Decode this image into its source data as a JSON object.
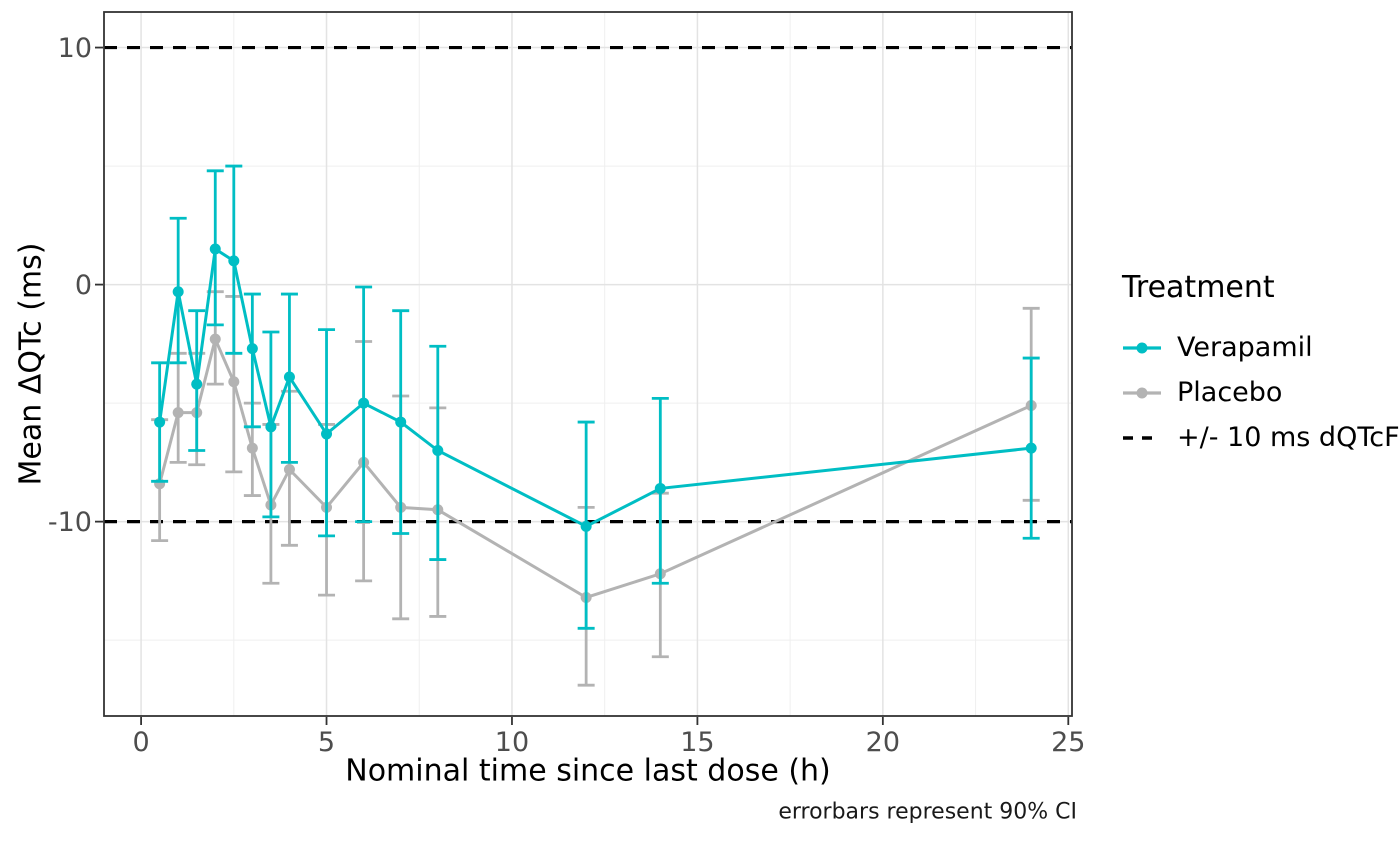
{
  "chart_data": {
    "type": "line",
    "title": "",
    "xlabel": "Nominal time since last dose (h)",
    "ylabel": "Mean ΔQTc (ms)",
    "caption": "errorbars represent 90% CI",
    "xlim": [
      -1.0,
      25.1
    ],
    "ylim": [
      -18.2,
      11.5
    ],
    "grid": true,
    "x_ticks": [
      0,
      5,
      10,
      15,
      20,
      25
    ],
    "x_tick_labels": [
      "0",
      "5",
      "10",
      "15",
      "20",
      "25"
    ],
    "x_minor_ticks": [
      2.5,
      7.5,
      12.5,
      17.5,
      22.5
    ],
    "y_ticks": [
      10,
      0,
      -10
    ],
    "y_tick_labels": [
      "10",
      "0",
      "-10"
    ],
    "y_minor_ticks": [
      5,
      -5,
      -15
    ],
    "x": [
      0.5,
      1,
      1.5,
      2,
      2.5,
      3,
      3.5,
      4,
      5,
      6,
      7,
      8,
      12,
      14,
      24
    ],
    "series": [
      {
        "name": "Placebo",
        "color": "#B3B3B3",
        "values": [
          -8.4,
          -5.4,
          -5.4,
          -2.3,
          -4.1,
          -6.9,
          -9.3,
          -7.8,
          -9.4,
          -7.5,
          -9.4,
          -9.5,
          -13.2,
          -12.2,
          -5.1
        ],
        "ci_high": [
          -5.7,
          -2.9,
          -2.9,
          -0.3,
          -0.5,
          -5.0,
          -5.9,
          -4.5,
          -5.9,
          -2.4,
          -4.7,
          -5.2,
          -9.4,
          -8.8,
          -1.0
        ],
        "ci_low": [
          -10.8,
          -7.5,
          -7.6,
          -4.2,
          -7.9,
          -8.9,
          -12.6,
          -11.0,
          -13.1,
          -12.5,
          -14.1,
          -14.0,
          -16.9,
          -15.7,
          -9.1
        ]
      },
      {
        "name": "Verapamil",
        "color": "#00BEC4",
        "values": [
          -5.8,
          -0.3,
          -4.2,
          1.5,
          1.0,
          -2.7,
          -6.0,
          -3.9,
          -6.3,
          -5.0,
          -5.8,
          -7.0,
          -10.2,
          -8.6,
          -6.9
        ],
        "ci_high": [
          -3.3,
          2.8,
          -1.1,
          4.8,
          5.0,
          -0.4,
          -2.0,
          -0.4,
          -1.9,
          -0.1,
          -1.1,
          -2.6,
          -5.8,
          -4.8,
          -3.1
        ],
        "ci_low": [
          -8.3,
          -3.3,
          -7.0,
          -1.7,
          -2.9,
          -6.0,
          -9.8,
          -7.5,
          -10.6,
          -10.0,
          -10.5,
          -11.6,
          -14.5,
          -12.6,
          -10.7
        ]
      }
    ],
    "ref_lines": {
      "values": [
        10,
        -10
      ],
      "style": "dashed",
      "color": "#000000",
      "label": "+/- 10 ms dQTcF"
    },
    "legend": {
      "title": "Treatment",
      "position": "right",
      "order": [
        "Verapamil",
        "Placebo",
        "+/- 10 ms dQTcF"
      ]
    },
    "colors": {
      "grid_major": "#E3E3E3",
      "grid_minor": "#EFEFEF",
      "panel_border": "#333333",
      "tick_text": "#4D4D4D"
    }
  }
}
